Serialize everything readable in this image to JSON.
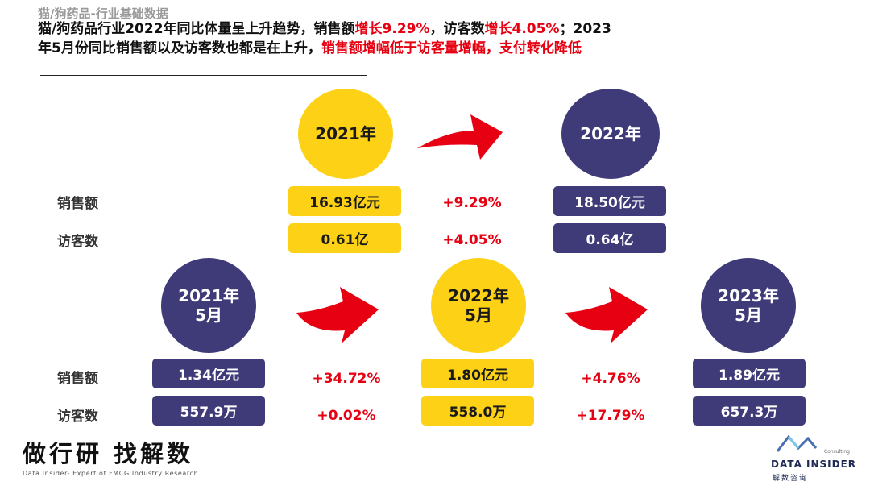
{
  "header": {
    "subtitle": "猫/狗药品-行业基础数据",
    "line1_a": "猫/狗药品行业2022年同比体量呈上升趋势，销售额",
    "line1_b": "增长9.29%",
    "line1_c": "，访客数",
    "line1_d": "增长4.05%",
    "line1_e": "；2023",
    "line2_a": "年5月份同比销售额以及访客数也都是在上升，",
    "line2_b": "销售额增幅低于访客量增幅，支付转化降低"
  },
  "labels": {
    "sales": "销售额",
    "visitors": "访客数"
  },
  "annual": {
    "from": {
      "title": "2021年",
      "sales": "16.93亿元",
      "visitors": "0.61亿"
    },
    "to": {
      "title": "2022年",
      "sales": "18.50亿元",
      "visitors": "0.64亿"
    },
    "growth": {
      "sales": "+9.29%",
      "visitors": "+4.05%"
    }
  },
  "may": {
    "y2021": {
      "title_line1": "2021年",
      "title_line2": "5月",
      "sales": "1.34亿元",
      "visitors": "557.9万"
    },
    "y2022": {
      "title_line1": "2022年",
      "title_line2": "5月",
      "sales": "1.80亿元",
      "visitors": "558.0万"
    },
    "y2023": {
      "title_line1": "2023年",
      "title_line2": "5月",
      "sales": "1.89亿元",
      "visitors": "657.3万"
    },
    "growth_21_22": {
      "sales": "+34.72%",
      "visitors": "+0.02%"
    },
    "growth_22_23": {
      "sales": "+4.76%",
      "visitors": "+17.79%"
    }
  },
  "footer": {
    "slogan": "做行研 找解数",
    "slogan_sub": "Data Insider- Expert of FMCG Industry Research",
    "logo_consulting": "Consulting",
    "logo_name": "DATA INSIDER",
    "logo_cn": "解数咨询"
  },
  "colors": {
    "yellow": "#fcd116",
    "navy": "#3f3a78",
    "red": "#e60012"
  }
}
